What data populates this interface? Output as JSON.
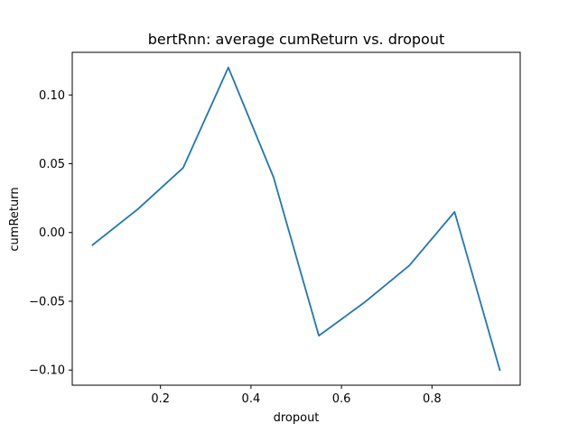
{
  "chart_data": {
    "type": "line",
    "title": "bertRnn: average cumReturn vs. dropout",
    "xlabel": "dropout",
    "ylabel": "cumReturn",
    "xlim": [
      0.005,
      0.995
    ],
    "ylim": [
      -0.111,
      0.131
    ],
    "xticks": [
      0.2,
      0.4,
      0.6,
      0.8
    ],
    "xtick_labels": [
      "0.2",
      "0.4",
      "0.6",
      "0.8"
    ],
    "yticks": [
      -0.1,
      -0.05,
      0.0,
      0.05,
      0.1
    ],
    "ytick_labels": [
      "−0.10",
      "−0.05",
      "0.00",
      "0.05",
      "0.10"
    ],
    "grid": false,
    "line_color": "#1f77b4",
    "series": [
      {
        "x": [
          0.05,
          0.15,
          0.25,
          0.35,
          0.45,
          0.55,
          0.65,
          0.75,
          0.85,
          0.95
        ],
        "values": [
          -0.009,
          0.017,
          0.047,
          0.12,
          0.04,
          -0.075,
          -0.051,
          -0.024,
          0.015,
          -0.1
        ]
      }
    ]
  }
}
